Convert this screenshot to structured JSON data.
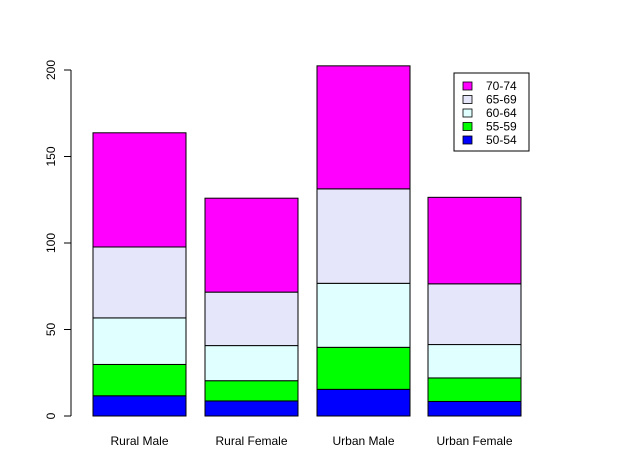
{
  "chart_data": {
    "type": "bar",
    "stacked": true,
    "title": "",
    "xlabel": "",
    "ylabel": "",
    "categories": [
      "Rural Male",
      "Rural Female",
      "Urban Male",
      "Urban Female"
    ],
    "ylim": [
      0,
      200
    ],
    "yticks": [
      "0",
      "50",
      "100",
      "150",
      "200"
    ],
    "grid": false,
    "legend_position": "top-right",
    "series": [
      {
        "name": "50-54",
        "color": "#0000ff",
        "values": [
          11.7,
          8.7,
          15.4,
          8.4
        ]
      },
      {
        "name": "55-59",
        "color": "#00ff00",
        "values": [
          18.1,
          11.7,
          24.3,
          13.6
        ]
      },
      {
        "name": "60-64",
        "color": "#e0ffff",
        "values": [
          26.9,
          20.3,
          37.0,
          19.3
        ]
      },
      {
        "name": "65-69",
        "color": "#e6e6fa",
        "values": [
          41.0,
          30.9,
          54.6,
          35.1
        ]
      },
      {
        "name": "70-74",
        "color": "#ff00ff",
        "values": [
          66.0,
          54.3,
          71.1,
          50.0
        ]
      }
    ],
    "legend_order": [
      "70-74",
      "65-69",
      "60-64",
      "55-59",
      "50-54"
    ]
  }
}
